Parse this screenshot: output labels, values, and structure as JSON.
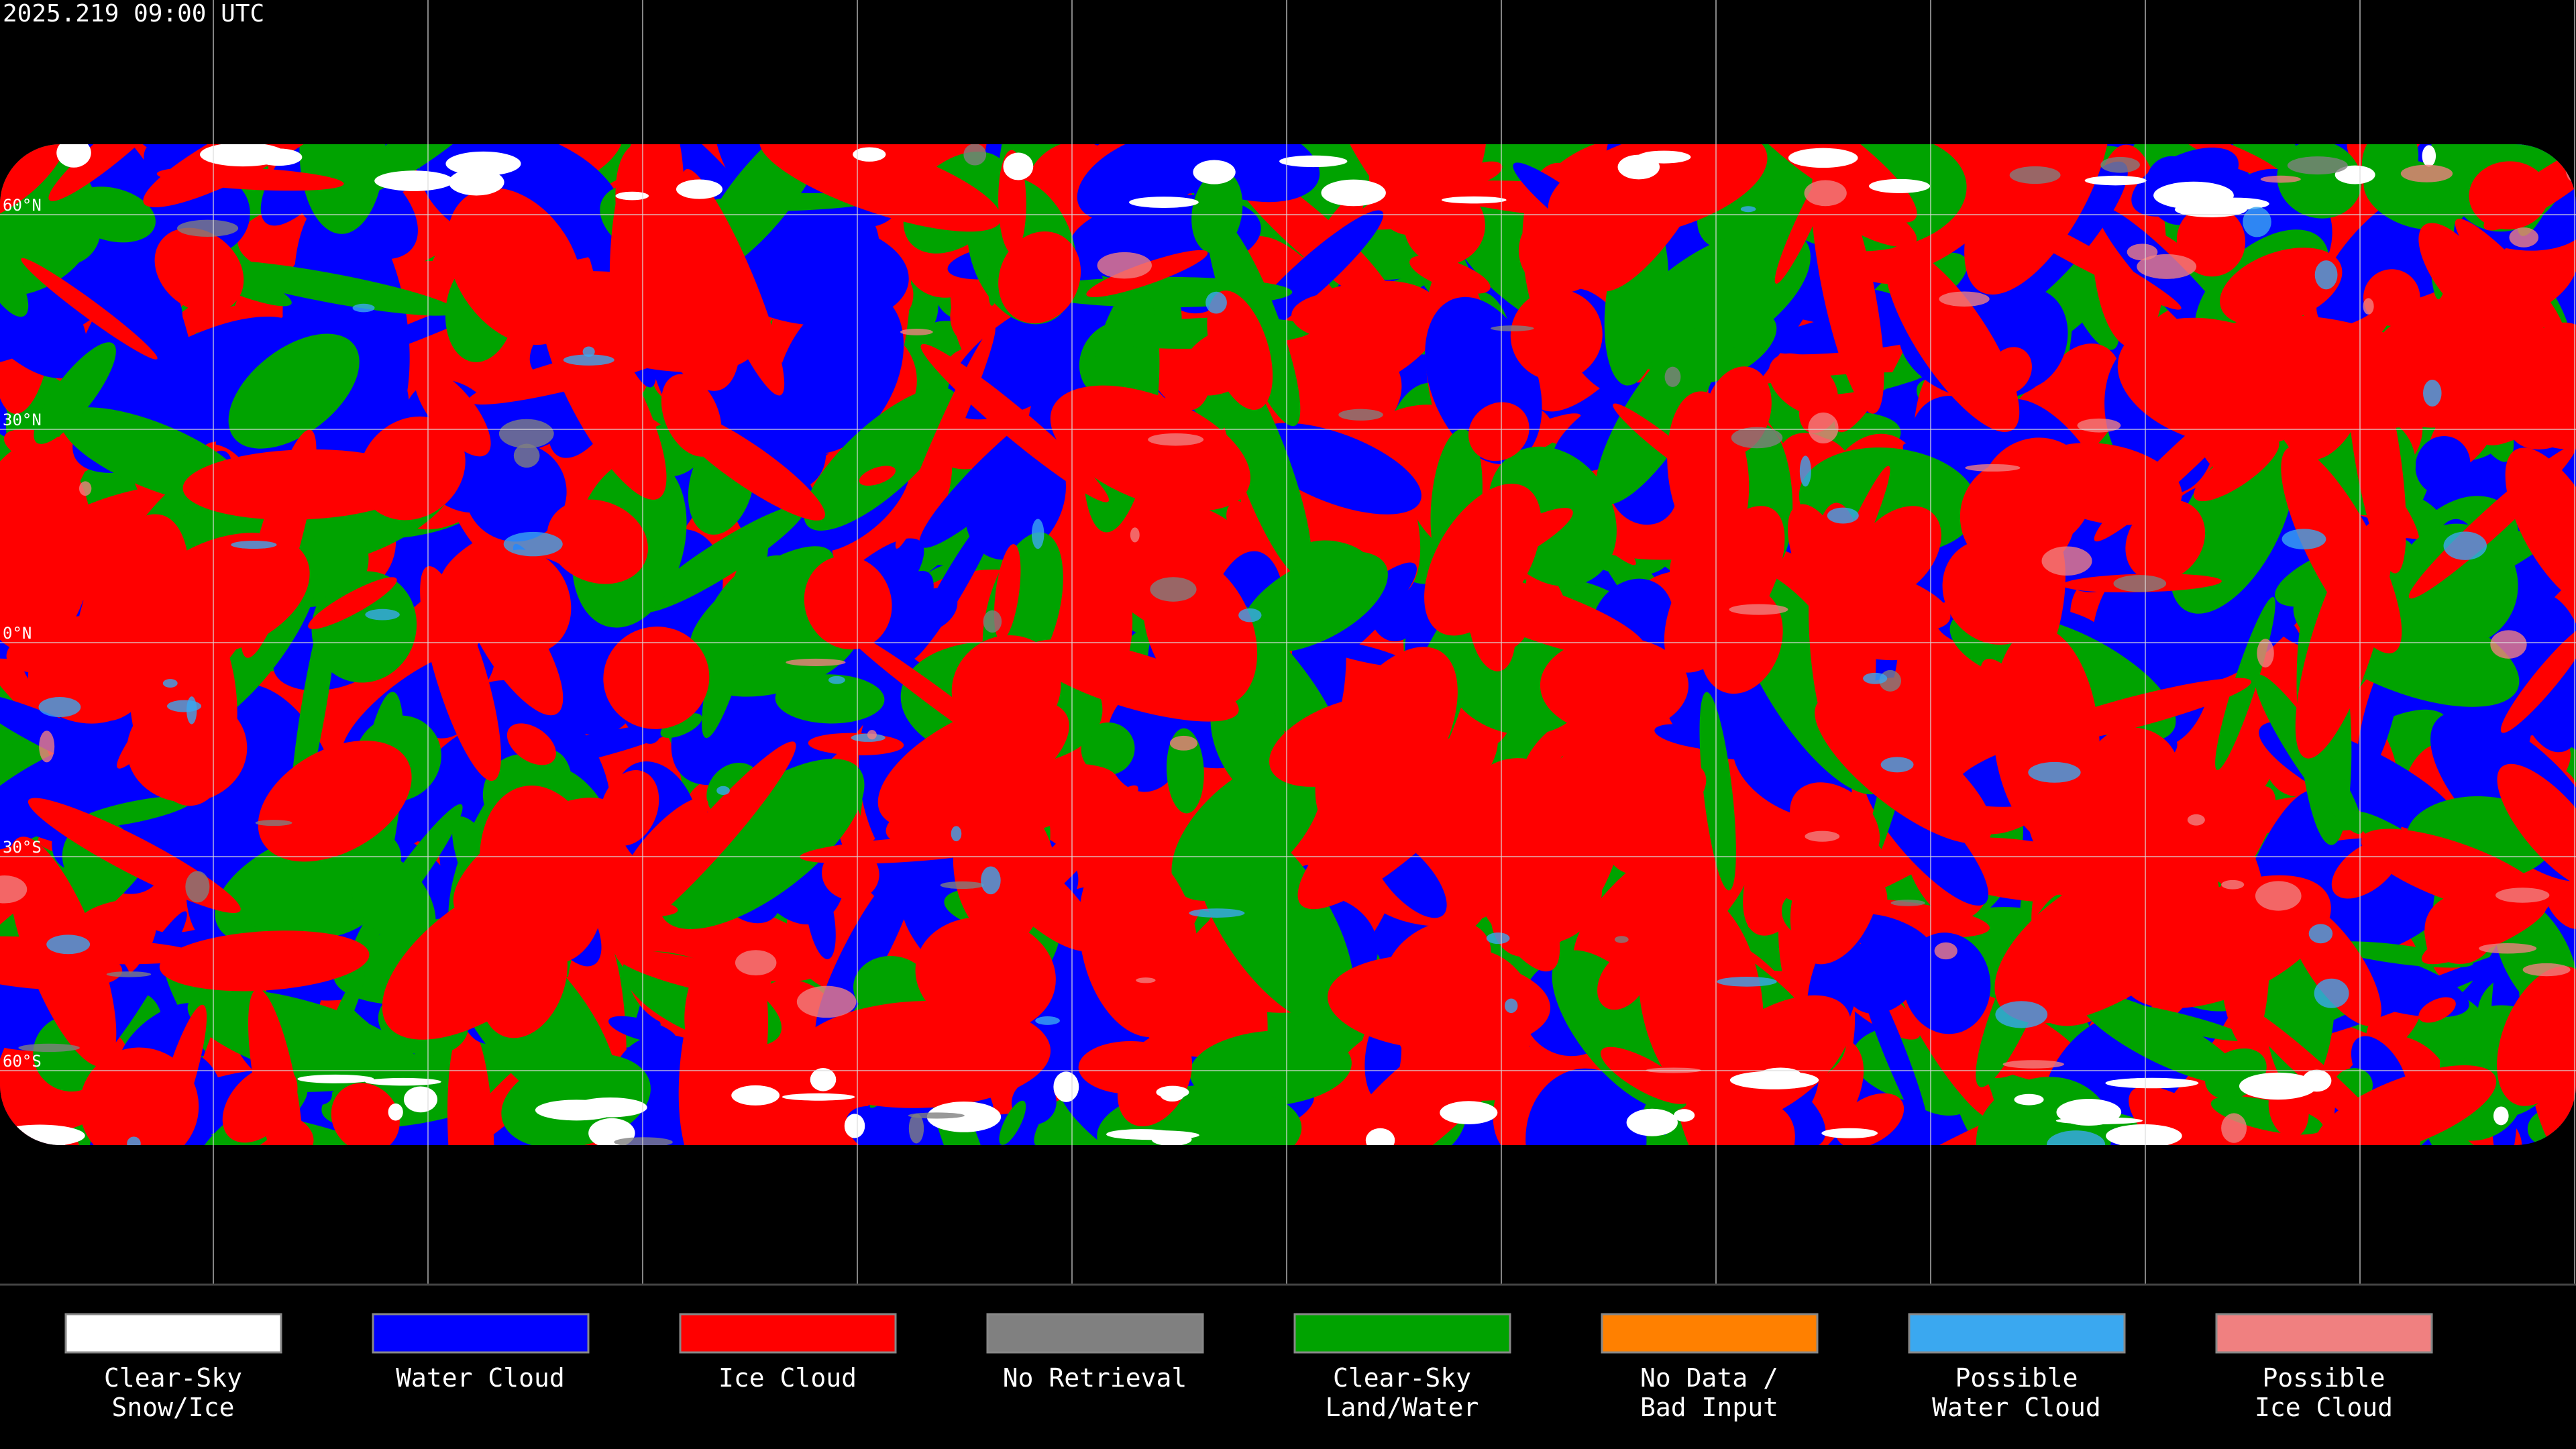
{
  "timestamp": "2025.219 09:00 UTC",
  "latitude_labels": [
    "60°N",
    "30°N",
    "0°N",
    "30°S",
    "60°S"
  ],
  "legend": [
    {
      "label": [
        "Clear-Sky",
        "Snow/Ice"
      ],
      "color": "#ffffff"
    },
    {
      "label": [
        "Water Cloud"
      ],
      "color": "#0000ff"
    },
    {
      "label": [
        "Ice Cloud"
      ],
      "color": "#ff0000"
    },
    {
      "label": [
        "No Retrieval"
      ],
      "color": "#808080"
    },
    {
      "label": [
        "Clear-Sky",
        "Land/Water"
      ],
      "color": "#00a300"
    },
    {
      "label": [
        "No Data /",
        "Bad Input"
      ],
      "color": "#ff8000"
    },
    {
      "label": [
        "Possible",
        "Water Cloud"
      ],
      "color": "#3aa8f0"
    },
    {
      "label": [
        "Possible",
        "Ice Cloud"
      ],
      "color": "#f08080"
    }
  ]
}
